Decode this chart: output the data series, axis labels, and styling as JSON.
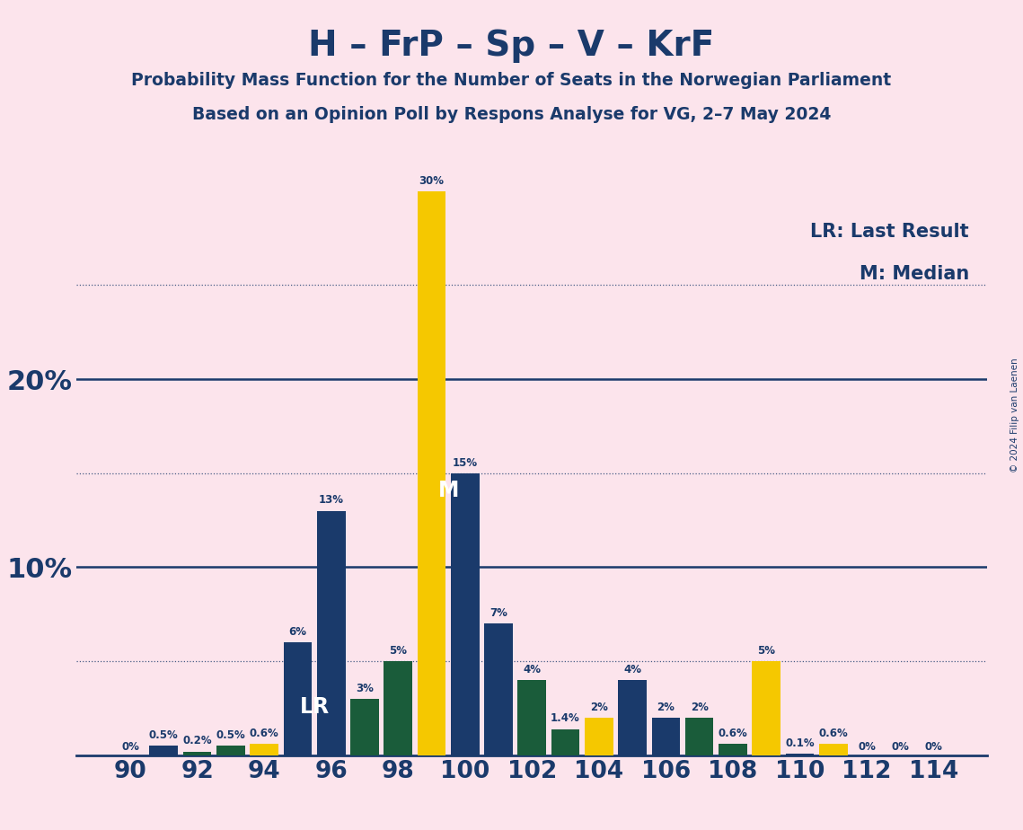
{
  "title": "H – FrP – Sp – V – KrF",
  "subtitle1": "Probability Mass Function for the Number of Seats in the Norwegian Parliament",
  "subtitle2": "Based on an Opinion Poll by Respons Analyse for VG, 2–7 May 2024",
  "copyright": "© 2024 Filip van Laenen",
  "background_color": "#fce4ec",
  "bar_color_blue": "#1a3a6b",
  "bar_color_green": "#1a5c3a",
  "bar_color_yellow": "#f5c800",
  "title_color": "#1a3a6b",
  "legend_LR": "LR: Last Result",
  "legend_M": "M: Median",
  "seats": [
    90,
    91,
    92,
    93,
    94,
    95,
    96,
    97,
    98,
    99,
    100,
    101,
    102,
    103,
    104,
    105,
    106,
    107,
    108,
    109,
    110,
    111,
    112,
    113,
    114
  ],
  "values": [
    0.0,
    0.5,
    0.2,
    0.5,
    0.6,
    6.0,
    13.0,
    3.0,
    5.0,
    30.0,
    15.0,
    7.0,
    4.0,
    1.4,
    2.0,
    4.0,
    2.0,
    2.0,
    0.6,
    5.0,
    0.1,
    0.6,
    0.0,
    0.0,
    0.0
  ],
  "bar_colors": [
    "blue",
    "blue",
    "green",
    "green",
    "yellow",
    "blue",
    "blue",
    "green",
    "green",
    "yellow",
    "blue",
    "blue",
    "green",
    "green",
    "yellow",
    "blue",
    "blue",
    "green",
    "green",
    "yellow",
    "blue",
    "yellow",
    "blue",
    "blue",
    "blue"
  ],
  "labels": [
    "0%",
    "0.5%",
    "0.2%",
    "0.5%",
    "0.6%",
    "6%",
    "13%",
    "3%",
    "5%",
    "30%",
    "15%",
    "7%",
    "4%",
    "1.4%",
    "2%",
    "4%",
    "2%",
    "2%",
    "0.6%",
    "5%",
    "0.1%",
    "0.6%",
    "0%",
    "0%",
    "0%"
  ],
  "LR_seat": 95,
  "M_seat": 99,
  "dotted_lines": [
    5,
    15,
    25
  ],
  "solid_lines": [
    10,
    20
  ],
  "xtick_seats": [
    90,
    92,
    94,
    96,
    98,
    100,
    102,
    104,
    106,
    108,
    110,
    112,
    114
  ],
  "xlim": [
    88.4,
    115.6
  ],
  "ylim": [
    0,
    32
  ]
}
